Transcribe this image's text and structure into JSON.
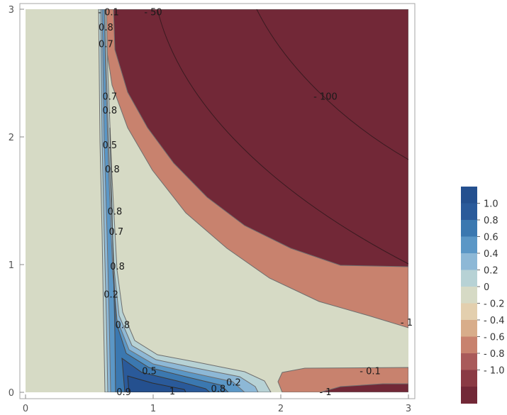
{
  "chart_data": {
    "type": "contour",
    "title": "",
    "xlabel": "",
    "ylabel": "",
    "xlim": [
      0,
      3
    ],
    "ylim": [
      0,
      3
    ],
    "x_ticks": [
      "0",
      "1",
      "2",
      "3"
    ],
    "y_ticks": [
      "0",
      "1",
      "2",
      "3"
    ],
    "grid": false,
    "contour_labels": [
      {
        "text": "- 0.1",
        "x": 0.65,
        "y": 2.98
      },
      {
        "text": "- 50",
        "x": 1.0,
        "y": 2.98
      },
      {
        "text": "0.8",
        "x": 0.63,
        "y": 2.86
      },
      {
        "text": "0.7",
        "x": 0.63,
        "y": 2.73
      },
      {
        "text": "0.7",
        "x": 0.66,
        "y": 2.32
      },
      {
        "text": "0.8",
        "x": 0.66,
        "y": 2.21
      },
      {
        "text": "- 100",
        "x": 2.35,
        "y": 2.32
      },
      {
        "text": "0.5",
        "x": 0.66,
        "y": 1.94
      },
      {
        "text": "0.8",
        "x": 0.68,
        "y": 1.75
      },
      {
        "text": "0.8",
        "x": 0.7,
        "y": 1.42
      },
      {
        "text": "0.7",
        "x": 0.71,
        "y": 1.26
      },
      {
        "text": "0.8",
        "x": 0.72,
        "y": 0.99
      },
      {
        "text": "0.2",
        "x": 0.67,
        "y": 0.77
      },
      {
        "text": "- 1",
        "x": 3.0,
        "y": 0.55
      },
      {
        "text": "0.8",
        "x": 0.76,
        "y": 0.53
      },
      {
        "text": "- 0.1",
        "x": 2.7,
        "y": 0.17
      },
      {
        "text": "0.5",
        "x": 0.97,
        "y": 0.17
      },
      {
        "text": "0.2",
        "x": 1.63,
        "y": 0.08
      },
      {
        "text": "0.8",
        "x": 1.51,
        "y": 0.03
      },
      {
        "text": "0.9",
        "x": 0.77,
        "y": 0.0
      },
      {
        "text": "1",
        "x": 1.15,
        "y": 0.01
      },
      {
        "text": "- 1",
        "x": 2.35,
        "y": -0.01
      }
    ],
    "legend": {
      "placement": "right",
      "levels": [
        {
          "label": "1.0",
          "color": "#2a5a9a"
        },
        {
          "label": "0.8",
          "color": "#3b78b0"
        },
        {
          "label": "0.6",
          "color": "#5b97c6"
        },
        {
          "label": "0.4",
          "color": "#8db8d6"
        },
        {
          "label": "0.2",
          "color": "#b7d2d5"
        },
        {
          "label": "0",
          "color": "#d6dac5"
        },
        {
          "label": "- 0.2",
          "color": "#e3cfae"
        },
        {
          "label": "- 0.4",
          "color": "#d8ad8a"
        },
        {
          "label": "- 0.6",
          "color": "#c8826e"
        },
        {
          "label": "- 0.8",
          "color": "#a95a5a"
        },
        {
          "label": "- 1.0",
          "color": "#8a3a44"
        }
      ],
      "extreme_colors": {
        "top": "#24508f",
        "bottom": "#722837"
      }
    },
    "colors": {
      "background_zero": "#d6dac5",
      "deep_negative": "#722837",
      "negative_band": "#c8826e",
      "positive_light": "#b7d2d5",
      "positive_mid": "#8db8d6",
      "positive_strong": "#5b97c6",
      "positive_deep": "#3b78b0",
      "positive_peak": "#2a5a9a"
    }
  }
}
